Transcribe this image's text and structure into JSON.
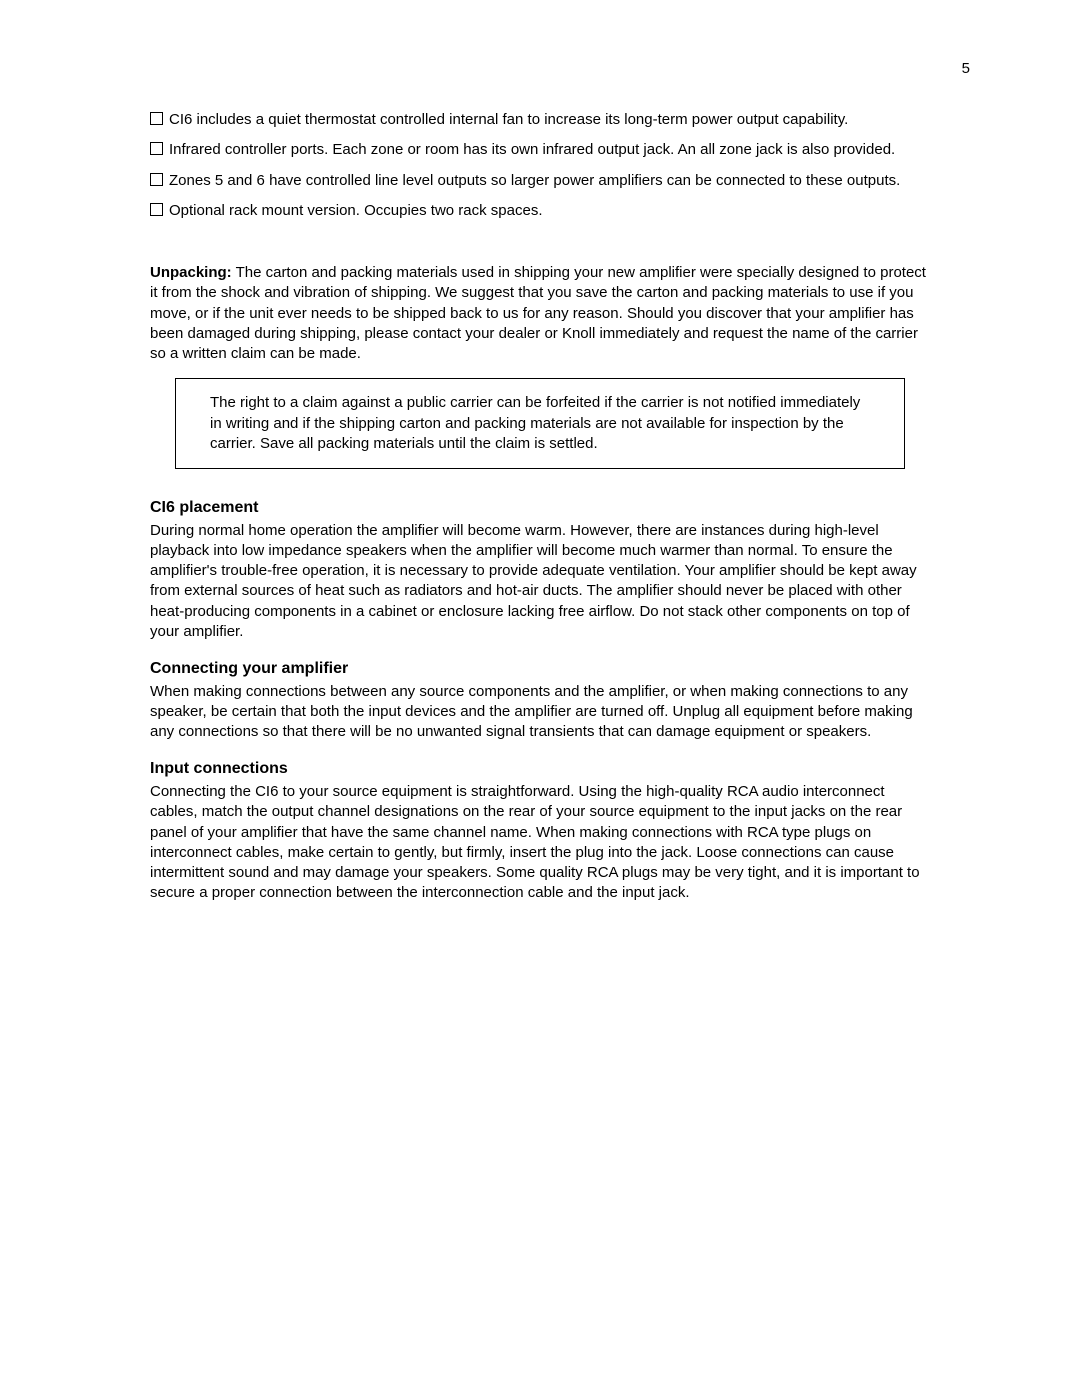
{
  "pageNumber": "5",
  "bullets": [
    "CI6 includes a quiet thermostat controlled internal fan to increase its long-term power output capability.",
    "Infrared controller ports. Each zone or room has its own infrared output jack. An all zone jack is also provided.",
    "Zones 5 and 6 have controlled line level outputs so larger power amplifiers can be connected to these outputs.",
    "Optional rack mount version. Occupies two rack spaces."
  ],
  "unpacking": {
    "label": "Unpacking:",
    "text": " The carton and packing materials used in shipping your new amplifier were specially designed to protect it from the shock and vibration of shipping. We suggest that you save the carton and packing materials to use if you move, or if the unit ever needs to be shipped back to us for any reason. Should you discover that your amplifier has been damaged during shipping, please contact your dealer or Knoll immediately and request the name of the carrier so a written claim can be made."
  },
  "callout": "The right to a claim against a public carrier can be forfeited if the carrier is not notified immediately in writing and if the shipping carton and packing materials are not available for inspection by the carrier. Save all packing materials until the claim is settled.",
  "sections": [
    {
      "title": "CI6 placement",
      "body": "During normal home operation the amplifier will become warm. However, there are instances during high-level playback into low impedance speakers when the amplifier will become much warmer than normal. To ensure the amplifier's trouble-free operation, it is necessary to provide adequate ventilation. Your amplifier should be kept away from external sources of heat such as radiators and hot-air ducts. The amplifier should never be placed with other heat-producing components in a cabinet or enclosure lacking free airflow. Do not stack other components on top of your amplifier."
    },
    {
      "title": "Connecting your amplifier",
      "body": "When making connections between any source components and the amplifier, or when making connections to any speaker, be certain that both the input devices and the amplifier are turned off. Unplug all equipment before making any connections so that there will be no unwanted signal transients that can damage equipment or speakers."
    },
    {
      "title": "Input connections",
      "body": "Connecting the CI6 to your source equipment is straightforward. Using the high-quality RCA audio interconnect cables, match the output channel designations on the rear of your source equipment to the input jacks on the rear panel of your amplifier that have the same channel name. When making connections with RCA type plugs on interconnect cables, make certain to gently, but firmly, insert the plug into the jack. Loose connections can cause intermittent sound and may damage your speakers. Some quality RCA plugs may be very tight, and it is important to secure a proper connection between the interconnection cable and the input jack."
    }
  ]
}
